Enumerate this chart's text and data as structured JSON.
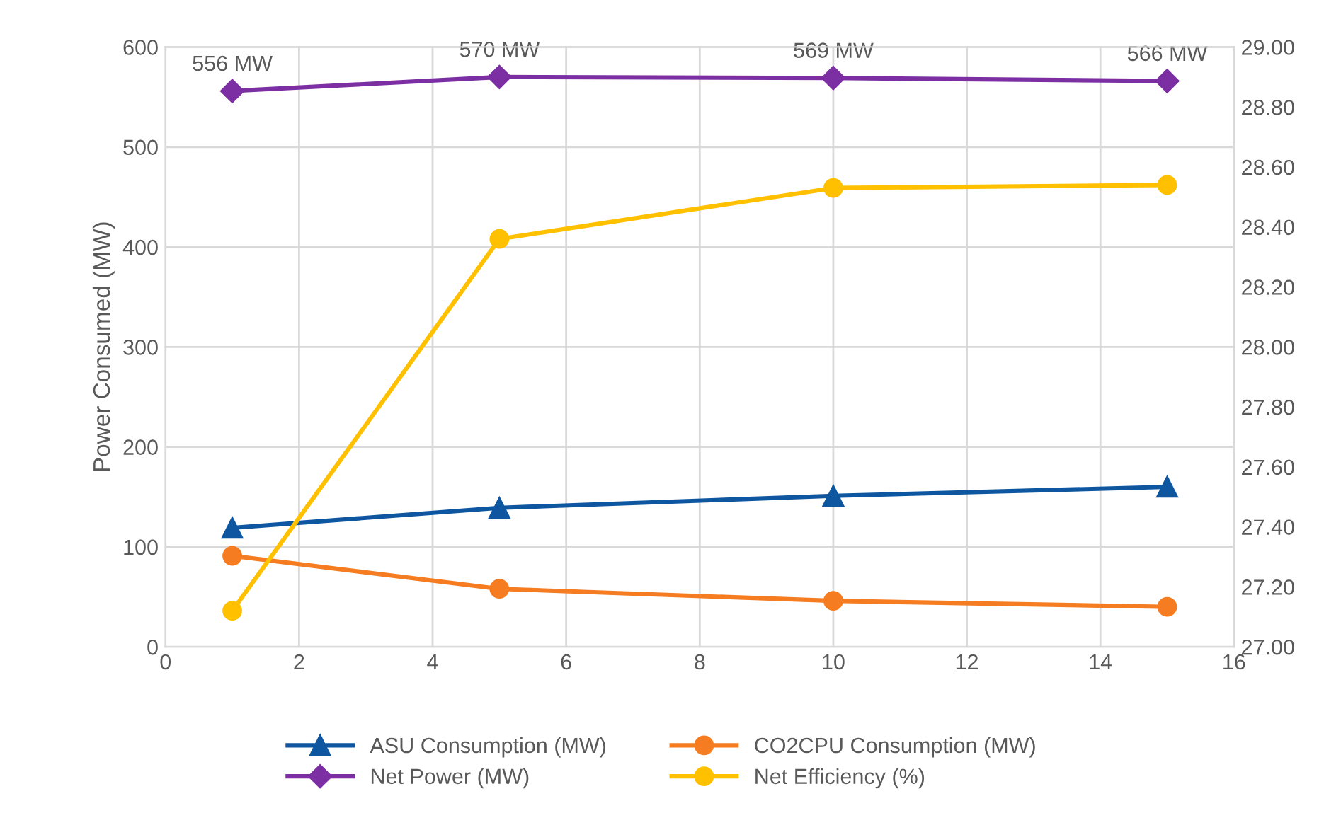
{
  "chart_data": {
    "type": "line",
    "ylabel": "Power Consumed (MW)",
    "x": [
      1,
      5,
      10,
      15
    ],
    "series": [
      {
        "name": "ASU Consumption (MW)",
        "color": "#0e57a0",
        "marker": "triangle",
        "values": [
          119,
          139,
          151,
          160
        ]
      },
      {
        "name": "CO2CPU Consumption (MW)",
        "color": "#f57c20",
        "marker": "circle",
        "values": [
          91,
          58,
          46,
          40
        ]
      },
      {
        "name": "Net Power (MW)",
        "color": "#7b2fa2",
        "marker": "diamond",
        "values": [
          556,
          570,
          569,
          566
        ],
        "value_labels": [
          "556 MW",
          "570 MW",
          "569 MW",
          "566 MW"
        ]
      },
      {
        "name": "Net Efficiency (%)",
        "color": "#ffc000",
        "marker": "circle",
        "axis": "y2",
        "values": [
          27.12,
          28.36,
          28.53,
          28.54
        ]
      }
    ],
    "xlim": [
      0,
      16
    ],
    "xticks": [
      0,
      2,
      4,
      6,
      8,
      10,
      12,
      14,
      16
    ],
    "ylim": [
      0,
      600
    ],
    "yticks": [
      0,
      100,
      200,
      300,
      400,
      500,
      600
    ],
    "y2lim": [
      27,
      29
    ],
    "y2ticks": [
      {
        "value": 27,
        "label": "27.00"
      },
      {
        "value": 27.2,
        "label": "27.20"
      },
      {
        "value": 27.4,
        "label": "27.40"
      },
      {
        "value": 27.6,
        "label": "27.60"
      },
      {
        "value": 27.8,
        "label": "27.80"
      },
      {
        "value": 28,
        "label": "28.00"
      },
      {
        "value": 28.2,
        "label": "28.20"
      },
      {
        "value": 28.4,
        "label": "28.40"
      },
      {
        "value": 28.6,
        "label": "28.60"
      },
      {
        "value": 28.8,
        "label": "28.80"
      },
      {
        "value": 29,
        "label": "29.00"
      }
    ],
    "grid": true,
    "legend": "bottom",
    "line_style": "solid"
  }
}
